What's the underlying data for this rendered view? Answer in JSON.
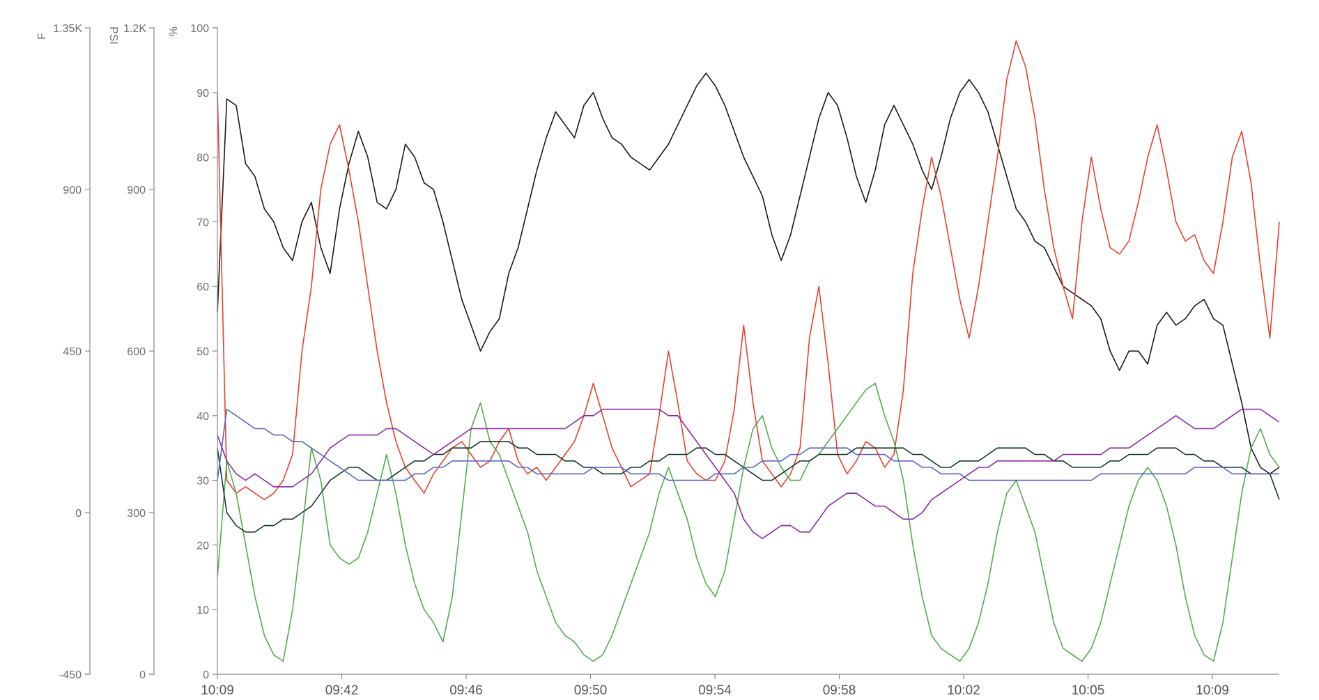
{
  "chart_data": {
    "type": "line",
    "title": "",
    "x_ticks": [
      "10:09",
      "09:42",
      "09:46",
      "09:50",
      "09:54",
      "09:58",
      "10:02",
      "10:05",
      "10:09"
    ],
    "y_axes": [
      {
        "unit": "F",
        "ylim": [
          -450,
          1350
        ],
        "ticks": [
          -450,
          0,
          450,
          900
        ],
        "tick_labels": [
          "-450",
          "0",
          "450",
          "900"
        ],
        "top_label": "1.35K"
      },
      {
        "unit": "PSI",
        "ylim": [
          0,
          1200
        ],
        "ticks": [
          0,
          300,
          600,
          900
        ],
        "tick_labels": [
          "0",
          "300",
          "600",
          "900"
        ],
        "top_label": "1.2K"
      },
      {
        "unit": "%",
        "ylim": [
          0,
          100
        ],
        "ticks": [
          0,
          10,
          20,
          30,
          40,
          50,
          60,
          70,
          80,
          90,
          100
        ],
        "tick_labels": [
          "0",
          "10",
          "20",
          "30",
          "40",
          "50",
          "60",
          "70",
          "80",
          "90",
          "100"
        ]
      }
    ],
    "grid": false,
    "legend": "none",
    "series": [
      {
        "color": "#1a1a1a",
        "values": [
          56,
          89,
          88,
          79,
          77,
          72,
          70,
          66,
          64,
          70,
          73,
          66,
          62,
          72,
          79,
          84,
          80,
          73,
          72,
          75,
          82,
          80,
          76,
          75,
          70,
          64,
          58,
          54,
          50,
          53,
          55,
          62,
          66,
          72,
          78,
          83,
          87,
          85,
          83,
          88,
          90,
          86,
          83,
          82,
          80,
          79,
          78,
          80,
          82,
          85,
          88,
          91,
          93,
          91,
          88,
          84,
          80,
          77,
          74,
          68,
          64,
          68,
          74,
          80,
          86,
          90,
          88,
          83,
          77,
          73,
          78,
          85,
          88,
          85,
          82,
          78,
          75,
          80,
          86,
          90,
          92,
          90,
          87,
          82,
          77,
          72,
          70,
          67,
          66,
          63,
          60,
          59,
          58,
          57,
          55,
          50,
          47,
          50,
          50,
          48,
          54,
          56,
          54,
          55,
          57,
          58,
          55,
          54,
          48,
          42,
          35,
          32,
          31,
          32
        ]
      },
      {
        "color": "#e8412c",
        "values": [
          90,
          30,
          28,
          29,
          28,
          27,
          28,
          30,
          34,
          50,
          60,
          75,
          82,
          85,
          78,
          70,
          60,
          50,
          42,
          36,
          32,
          30,
          28,
          31,
          33,
          35,
          36,
          34,
          32,
          33,
          36,
          38,
          33,
          31,
          32,
          30,
          32,
          34,
          36,
          40,
          45,
          40,
          35,
          32,
          29,
          30,
          31,
          40,
          50,
          42,
          33,
          31,
          30,
          30,
          33,
          41,
          54,
          42,
          33,
          31,
          29,
          31,
          35,
          52,
          60,
          48,
          34,
          31,
          33,
          36,
          35,
          32,
          34,
          44,
          62,
          72,
          80,
          74,
          66,
          58,
          52,
          60,
          70,
          80,
          92,
          98,
          94,
          86,
          75,
          66,
          60,
          55,
          70,
          80,
          72,
          66,
          65,
          67,
          73,
          80,
          85,
          78,
          70,
          67,
          68,
          64,
          62,
          70,
          80,
          84,
          76,
          63,
          52,
          70
        ]
      },
      {
        "color": "#4fae4a",
        "values": [
          15,
          33,
          28,
          20,
          12,
          6,
          3,
          2,
          10,
          22,
          35,
          30,
          20,
          18,
          17,
          18,
          22,
          28,
          34,
          28,
          20,
          14,
          10,
          8,
          5,
          12,
          25,
          38,
          42,
          36,
          34,
          30,
          26,
          22,
          16,
          12,
          8,
          6,
          5,
          3,
          2,
          3,
          6,
          10,
          14,
          18,
          22,
          28,
          32,
          28,
          24,
          18,
          14,
          12,
          16,
          24,
          32,
          38,
          40,
          35,
          32,
          30,
          30,
          33,
          34,
          36,
          38,
          40,
          42,
          44,
          45,
          40,
          36,
          30,
          20,
          12,
          6,
          4,
          3,
          2,
          4,
          8,
          14,
          22,
          28,
          30,
          26,
          22,
          15,
          8,
          4,
          3,
          2,
          4,
          8,
          14,
          20,
          26,
          30,
          32,
          30,
          26,
          20,
          12,
          6,
          3,
          2,
          8,
          18,
          28,
          35,
          38,
          34,
          32
        ]
      },
      {
        "color": "#103a2e",
        "values": [
          35,
          25,
          23,
          22,
          22,
          23,
          23,
          24,
          24,
          25,
          26,
          28,
          30,
          31,
          32,
          32,
          31,
          30,
          30,
          31,
          32,
          33,
          33,
          34,
          34,
          35,
          35,
          35,
          36,
          36,
          36,
          36,
          35,
          35,
          34,
          34,
          34,
          33,
          33,
          32,
          32,
          31,
          31,
          31,
          32,
          32,
          33,
          33,
          34,
          34,
          34,
          35,
          35,
          34,
          34,
          33,
          32,
          31,
          30,
          30,
          31,
          32,
          33,
          33,
          34,
          34,
          34,
          34,
          35,
          35,
          35,
          35,
          35,
          35,
          34,
          34,
          33,
          32,
          32,
          33,
          33,
          33,
          34,
          35,
          35,
          35,
          35,
          34,
          34,
          33,
          33,
          32,
          32,
          32,
          32,
          33,
          33,
          34,
          34,
          34,
          35,
          35,
          35,
          34,
          34,
          33,
          33,
          32,
          32,
          32,
          31,
          31,
          31,
          27
        ]
      },
      {
        "color": "#5566c8",
        "values": [
          30,
          41,
          40,
          39,
          38,
          38,
          37,
          37,
          36,
          36,
          35,
          34,
          33,
          32,
          31,
          30,
          30,
          30,
          30,
          30,
          30,
          31,
          31,
          32,
          32,
          33,
          33,
          33,
          33,
          33,
          33,
          33,
          32,
          32,
          31,
          31,
          31,
          31,
          31,
          31,
          32,
          32,
          32,
          32,
          31,
          31,
          31,
          31,
          30,
          30,
          30,
          30,
          30,
          31,
          31,
          31,
          32,
          32,
          33,
          33,
          33,
          34,
          34,
          35,
          35,
          35,
          35,
          35,
          34,
          34,
          34,
          34,
          33,
          33,
          33,
          32,
          32,
          31,
          31,
          31,
          30,
          30,
          30,
          30,
          30,
          30,
          30,
          30,
          30,
          30,
          30,
          30,
          30,
          30,
          31,
          31,
          31,
          31,
          31,
          31,
          31,
          31,
          31,
          31,
          32,
          32,
          32,
          32,
          31,
          31,
          31,
          31,
          31,
          31
        ]
      },
      {
        "color": "#8e27a8",
        "values": [
          37,
          33,
          31,
          30,
          31,
          30,
          29,
          29,
          29,
          30,
          31,
          33,
          35,
          36,
          37,
          37,
          37,
          37,
          38,
          38,
          37,
          36,
          35,
          34,
          35,
          36,
          37,
          38,
          38,
          38,
          38,
          38,
          38,
          38,
          38,
          38,
          38,
          38,
          39,
          40,
          40,
          41,
          41,
          41,
          41,
          41,
          41,
          41,
          40,
          40,
          38,
          36,
          34,
          32,
          30,
          28,
          24,
          22,
          21,
          22,
          23,
          23,
          22,
          22,
          24,
          26,
          27,
          28,
          28,
          27,
          26,
          26,
          25,
          24,
          24,
          25,
          27,
          28,
          29,
          30,
          31,
          32,
          32,
          33,
          33,
          33,
          33,
          33,
          33,
          33,
          34,
          34,
          34,
          34,
          34,
          35,
          35,
          35,
          36,
          37,
          38,
          39,
          40,
          39,
          38,
          38,
          38,
          39,
          40,
          41,
          41,
          41,
          40,
          39
        ]
      }
    ]
  }
}
